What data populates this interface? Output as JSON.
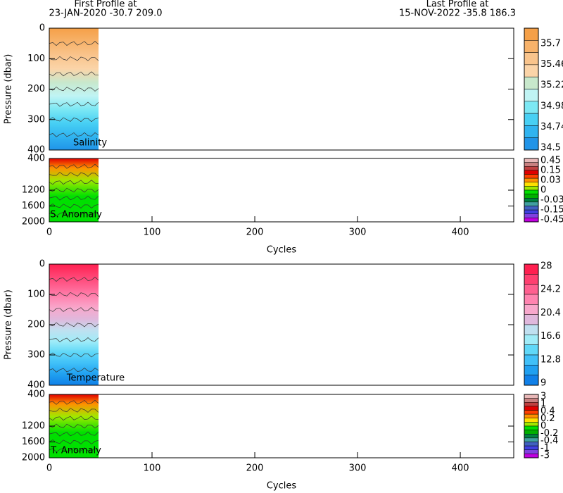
{
  "header": {
    "first_title": "First Profile at",
    "first_info": "23-JAN-2020   -30.7 209.0",
    "last_title": "Last Profile at",
    "last_info": "15-NOV-2022   -35.8 186.3"
  },
  "chart_data": [
    {
      "type": "contour",
      "label": "Salinity",
      "ylabel": "Pressure (dbar)",
      "xlim": [
        0,
        452
      ],
      "ylim": [
        0,
        400
      ],
      "yticks": [
        0,
        100,
        200,
        300,
        400
      ],
      "colorbar_labels": [
        "35.7",
        "35.46",
        "35.22",
        "34.98",
        "34.74",
        "34.5"
      ],
      "colorbar_colors": [
        "#f5a048",
        "#f7b26a",
        "#f9c48c",
        "#fbd4a8",
        "#c8e8cc",
        "#c0f4f4",
        "#7ce8f4",
        "#48d0f4",
        "#30b4f0",
        "#2094e8"
      ]
    },
    {
      "type": "contour",
      "label": "S. Anomaly",
      "xlabel": "Cycles",
      "xlim": [
        0,
        452
      ],
      "ylim": [
        400,
        2000
      ],
      "yticks": [
        400,
        1200,
        1600,
        2000
      ],
      "xticks": [
        0,
        100,
        200,
        300,
        400
      ],
      "colorbar_labels": [
        "0.45",
        "0.15",
        "0.03",
        "0",
        "-0.03",
        "-0.15",
        "-0.45"
      ],
      "colorbar_colors": [
        "#e8b8b8",
        "#c88080",
        "#c04040",
        "#e00000",
        "#ff4000",
        "#ff9000",
        "#ffe000",
        "#a0e800",
        "#00e000",
        "#00b000",
        "#008040",
        "#40a0a0",
        "#4060c0",
        "#4040e0",
        "#8040e0",
        "#c000e0"
      ]
    },
    {
      "type": "contour",
      "label": "Temperature",
      "ylabel": "Pressure (dbar)",
      "xlim": [
        0,
        452
      ],
      "ylim": [
        0,
        400
      ],
      "yticks": [
        0,
        100,
        200,
        300,
        400
      ],
      "colorbar_labels": [
        "28",
        "24.2",
        "20.4",
        "16.6",
        "12.8",
        "9"
      ],
      "colorbar_colors": [
        "#ff2050",
        "#ff4070",
        "#ff6090",
        "#ff84b0",
        "#f8a8cc",
        "#e0b8dc",
        "#c0e0f0",
        "#a0ecf8",
        "#60d8f8",
        "#40c0f8",
        "#20a0f0",
        "#1080e8"
      ]
    },
    {
      "type": "contour",
      "label": "T. Anomaly",
      "xlabel": "Cycles",
      "xlim": [
        0,
        452
      ],
      "ylim": [
        400,
        2000
      ],
      "yticks": [
        400,
        1200,
        1600,
        2000
      ],
      "xticks": [
        0,
        100,
        200,
        300,
        400
      ],
      "colorbar_labels": [
        "3",
        "1",
        "0.4",
        "0.2",
        "0",
        "-0.2",
        "-0.4",
        "-1",
        "-3"
      ],
      "colorbar_colors": [
        "#e8b8b8",
        "#c88080",
        "#c04040",
        "#e00000",
        "#ff4000",
        "#ff9000",
        "#ffe000",
        "#a0e800",
        "#00e000",
        "#00b000",
        "#008040",
        "#40a0a0",
        "#4060c0",
        "#4040e0",
        "#8040e0",
        "#c000e0"
      ]
    }
  ]
}
